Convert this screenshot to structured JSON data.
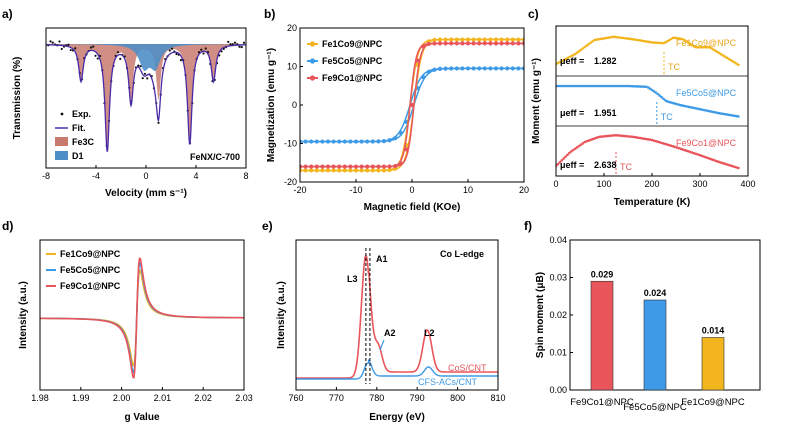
{
  "colors": {
    "red": "#e8555b",
    "blue": "#3d9ae6",
    "yellow": "#f2b51e",
    "purple": "#4a2aa8",
    "fe3c": "#c87a6e",
    "d1": "#4f8fc7",
    "black": "#111111"
  },
  "chart_data": [
    {
      "panel": "a)",
      "type": "line",
      "xlabel": "Velocity (mm s⁻¹)",
      "ylabel": "Transmission (%)",
      "xlim": [
        -8,
        8
      ],
      "xticks": [
        "-8",
        "-4",
        "0",
        "4",
        "8"
      ],
      "legend": [
        "Exp.",
        "Fit.",
        "Fe3C",
        "D1"
      ],
      "annotation": "FeNX/C-700",
      "series": [
        {
          "name": "Fe3C",
          "lines": [
            {
              "p": -5.2,
              "d": 0.3
            },
            {
              "p": -3.1,
              "d": 0.88
            },
            {
              "p": -1.2,
              "d": 0.45
            },
            {
              "p": 1.0,
              "d": 0.45
            },
            {
              "p": 3.5,
              "d": 0.82
            },
            {
              "p": 5.4,
              "d": 0.3
            }
          ]
        },
        {
          "name": "D1",
          "lines": [
            {
              "p": -0.15,
              "d": 0.18
            },
            {
              "p": 0.75,
              "d": 0.18
            }
          ]
        }
      ]
    },
    {
      "panel": "b)",
      "type": "line",
      "xlabel": "Magnetic field (KOe)",
      "ylabel": "Magnetization (emu g⁻¹)",
      "xlim": [
        -20,
        20
      ],
      "ylim": [
        -20,
        20
      ],
      "xticks": [
        "-20",
        "-10",
        "0",
        "10",
        "20"
      ],
      "yticks": [
        "-20",
        "-10",
        "0",
        "10",
        "20"
      ],
      "series": [
        {
          "name": "Fe1Co9@NPC",
          "ms": 17.0,
          "h0": 1.4
        },
        {
          "name": "Fe5Co5@NPC",
          "ms": 9.5,
          "h0": 2.0
        },
        {
          "name": "Fe9Co1@NPC",
          "ms": 16.0,
          "h0": 1.1
        }
      ]
    },
    {
      "panel": "c)",
      "type": "line",
      "xlabel": "Temperature (K)",
      "ylabel": "Moment (emu g⁻¹)",
      "xlim": [
        0,
        400
      ],
      "xticks": [
        "0",
        "100",
        "200",
        "300",
        "400"
      ],
      "series": [
        {
          "name": "Fe1Co9@NPC",
          "mu": "1.282",
          "tc": 225,
          "x": [
            0,
            40,
            80,
            120,
            160,
            200,
            225,
            245,
            265,
            290,
            320,
            350,
            380
          ],
          "y": [
            0.2,
            0.45,
            0.8,
            0.88,
            0.82,
            0.74,
            0.72,
            0.86,
            0.82,
            0.62,
            0.62,
            0.4,
            0.18
          ]
        },
        {
          "name": "Fe5Co5@NPC",
          "mu": "1.951",
          "tc": 210,
          "x": [
            0,
            50,
            100,
            150,
            190,
            210,
            230,
            260,
            300,
            340,
            380
          ],
          "y": [
            0.9,
            0.9,
            0.9,
            0.9,
            0.88,
            0.72,
            0.52,
            0.42,
            0.32,
            0.22,
            0.14
          ]
        },
        {
          "name": "Fe9Co1@NPC",
          "mu": "2.638",
          "tc": 125,
          "x": [
            0,
            30,
            60,
            90,
            125,
            160,
            200,
            250,
            300,
            340,
            380
          ],
          "y": [
            0.15,
            0.5,
            0.75,
            0.88,
            0.92,
            0.88,
            0.8,
            0.62,
            0.42,
            0.25,
            0.1
          ]
        }
      ],
      "label_mu": "μeff = ",
      "label_tc": "TC"
    },
    {
      "panel": "d)",
      "type": "line",
      "xlabel": "g Value",
      "ylabel": "Intensity (a.u.)",
      "xlim": [
        1.98,
        2.03
      ],
      "xticks": [
        "1.98",
        "1.99",
        "2.00",
        "2.01",
        "2.02",
        "2.03"
      ],
      "series": [
        {
          "name": "Fe1Co9@NPC",
          "amp": 0.8
        },
        {
          "name": "Fe5Co5@NPC",
          "amp": 0.92
        },
        {
          "name": "Fe9Co1@NPC",
          "amp": 1.0
        }
      ]
    },
    {
      "panel": "e)",
      "type": "line",
      "xlabel": "Energy (eV)",
      "ylabel": "Intensity (a.u.)",
      "xlim": [
        760,
        810
      ],
      "xticks": [
        "760",
        "770",
        "780",
        "790",
        "800",
        "810"
      ],
      "title": "Co L-edge",
      "peaks": [
        "L3",
        "A1",
        "A2",
        "L2"
      ],
      "series": [
        {
          "name": "CoS/CNT"
        },
        {
          "name": "CFS-ACs/CNT"
        }
      ]
    },
    {
      "panel": "f)",
      "type": "bar",
      "ylabel": "Spin moment (μB)",
      "ylim": [
        0,
        0.04
      ],
      "yticks": [
        "0.00",
        "0.01",
        "0.02",
        "0.03",
        "0.04"
      ],
      "categories": [
        "Fe9Co1@NPC",
        "Fe5Co5@NPC",
        "Fe1Co9@NPC"
      ],
      "values": [
        0.029,
        0.024,
        0.014
      ],
      "value_labels": [
        "0.029",
        "0.024",
        "0.014"
      ]
    }
  ]
}
